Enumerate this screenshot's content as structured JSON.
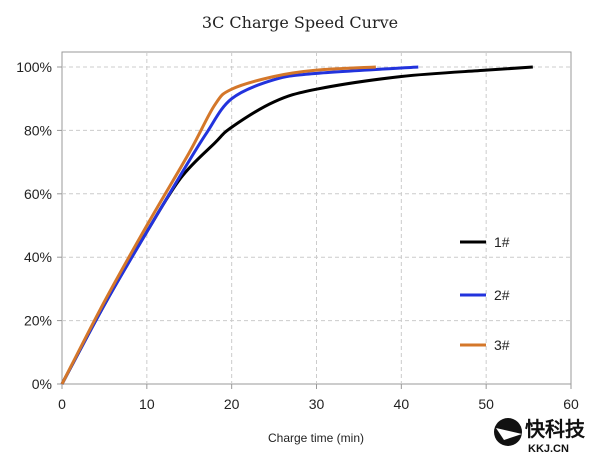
{
  "chart_data": {
    "type": "line",
    "title": "3C Charge Speed Curve",
    "xlabel": "Charge time (min)",
    "ylabel": "",
    "xlim": [
      0,
      60
    ],
    "ylim": [
      0,
      100
    ],
    "xticks": [
      "0",
      "10",
      "20",
      "30",
      "40",
      "50",
      "60"
    ],
    "yticks": [
      "0%",
      "20%",
      "40%",
      "60%",
      "80%",
      "100%"
    ],
    "grid": true,
    "legend_position": "right",
    "series": [
      {
        "name": "1#",
        "color": "#000000",
        "x": [
          0,
          5,
          10,
          14,
          18,
          20,
          25,
          30,
          40,
          50,
          55.5
        ],
        "y": [
          0,
          25,
          48,
          65,
          76,
          81,
          89,
          93,
          97,
          99,
          100
        ]
      },
      {
        "name": "2#",
        "color": "#2233dd",
        "x": [
          0,
          5,
          10,
          14,
          17,
          20,
          25,
          30,
          42
        ],
        "y": [
          0,
          25,
          48,
          66,
          79,
          90,
          96,
          98,
          100
        ]
      },
      {
        "name": "3#",
        "color": "#d4772a",
        "x": [
          0,
          5,
          10,
          15,
          18,
          20,
          25,
          30,
          37
        ],
        "y": [
          0,
          26,
          50,
          73,
          88,
          93,
          97,
          99,
          100
        ]
      }
    ]
  },
  "watermark": {
    "text": "快科技",
    "sub": "KKJ.CN"
  }
}
